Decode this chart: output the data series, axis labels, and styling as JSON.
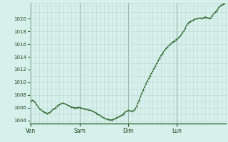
{
  "background_color": "#d8f0ec",
  "grid_color": "#b8d8d0",
  "line_color": "#2d6a2d",
  "marker_color": "#2d6a2d",
  "ylim": [
    1003.5,
    1022.5
  ],
  "yticks": [
    1004,
    1006,
    1008,
    1010,
    1012,
    1014,
    1016,
    1018,
    1020
  ],
  "xtick_labels": [
    "Ven",
    "Sam",
    "Dim",
    "Lun"
  ],
  "xtick_positions": [
    0,
    36,
    72,
    108
  ],
  "total_points": 144,
  "pressure_values": [
    1007.0,
    1007.2,
    1007.1,
    1006.8,
    1006.5,
    1006.2,
    1005.9,
    1005.7,
    1005.5,
    1005.4,
    1005.3,
    1005.2,
    1005.1,
    1005.2,
    1005.3,
    1005.5,
    1005.7,
    1005.8,
    1006.0,
    1006.2,
    1006.4,
    1006.5,
    1006.6,
    1006.7,
    1006.7,
    1006.6,
    1006.5,
    1006.4,
    1006.3,
    1006.2,
    1006.1,
    1006.1,
    1006.0,
    1006.0,
    1006.0,
    1006.1,
    1006.0,
    1006.0,
    1005.9,
    1005.8,
    1005.8,
    1005.7,
    1005.7,
    1005.6,
    1005.6,
    1005.5,
    1005.4,
    1005.3,
    1005.2,
    1005.0,
    1004.9,
    1004.8,
    1004.6,
    1004.5,
    1004.4,
    1004.3,
    1004.2,
    1004.2,
    1004.1,
    1004.1,
    1004.1,
    1004.2,
    1004.3,
    1004.4,
    1004.5,
    1004.6,
    1004.7,
    1004.8,
    1005.0,
    1005.2,
    1005.4,
    1005.5,
    1005.6,
    1005.5,
    1005.5,
    1005.4,
    1005.6,
    1005.8,
    1006.2,
    1006.7,
    1007.2,
    1007.8,
    1008.3,
    1008.8,
    1009.3,
    1009.8,
    1010.2,
    1010.6,
    1011.0,
    1011.4,
    1011.8,
    1012.2,
    1012.6,
    1013.0,
    1013.4,
    1013.8,
    1014.2,
    1014.5,
    1014.8,
    1015.1,
    1015.4,
    1015.6,
    1015.8,
    1016.0,
    1016.2,
    1016.4,
    1016.5,
    1016.7,
    1016.8,
    1017.0,
    1017.2,
    1017.5,
    1017.8,
    1018.1,
    1018.5,
    1019.0,
    1019.3,
    1019.5,
    1019.6,
    1019.7,
    1019.8,
    1019.9,
    1020.0,
    1020.0,
    1020.1,
    1020.1,
    1020.0,
    1020.1,
    1020.2,
    1020.3,
    1020.2,
    1020.1,
    1020.0,
    1020.2,
    1020.5,
    1020.8,
    1021.0,
    1021.2,
    1021.5,
    1021.8,
    1022.0,
    1022.2,
    1022.3,
    1022.4
  ]
}
